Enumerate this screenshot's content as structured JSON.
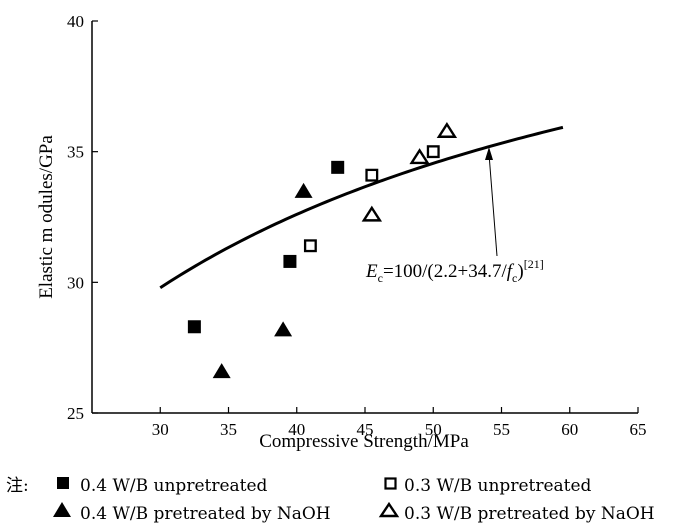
{
  "chart_data": {
    "type": "scatter",
    "xlabel": "Compressive Strength/MPa",
    "ylabel": "Elastic m odules/GPa",
    "xlim": [
      25,
      65
    ],
    "ylim": [
      25,
      40
    ],
    "xticks": [
      30,
      35,
      40,
      45,
      50,
      55,
      60,
      65
    ],
    "yticks": [
      25,
      30,
      35,
      40
    ],
    "grid": false,
    "series": [
      {
        "name": "0.4 W/B unpretreated",
        "marker": "filled-square",
        "x": [
          32.5,
          39.5,
          43.0
        ],
        "y": [
          28.3,
          30.8,
          34.4
        ]
      },
      {
        "name": "0.3 W/B unpretreated",
        "marker": "open-square",
        "x": [
          41.0,
          45.5,
          50.0
        ],
        "y": [
          31.4,
          34.1,
          35.0
        ]
      },
      {
        "name": "0.4 W/B pretreated by NaOH",
        "marker": "filled-triangle",
        "x": [
          34.5,
          39.0,
          40.5
        ],
        "y": [
          26.6,
          28.2,
          33.5
        ]
      },
      {
        "name": "0.3 W/B pretreated by NaOH",
        "marker": "open-triangle",
        "x": [
          45.5,
          49.0,
          51.0
        ],
        "y": [
          32.6,
          34.8,
          35.8
        ]
      }
    ],
    "fit_curve": {
      "formula": {
        "E": "E",
        "c1": "c",
        "mid": "=100/(2.2+34.7/",
        "f": "f",
        "c2": "c",
        "close": ")",
        "ref": "[21]"
      },
      "coeff_a": 100,
      "coeff_b": 2.2,
      "coeff_c": 34.7,
      "x_range": [
        30,
        59.5
      ]
    }
  },
  "legend": {
    "note_label": "注:",
    "items": [
      {
        "text": "0.4 W/B unpretreated",
        "marker": "filled-square"
      },
      {
        "text": "0.3 W/B unpretreated",
        "marker": "open-square"
      },
      {
        "text": "0.4 W/B pretreated by NaOH",
        "marker": "filled-triangle"
      },
      {
        "text": "0.3 W/B pretreated by NaOH",
        "marker": "open-triangle"
      }
    ]
  },
  "colors": {
    "ink": "#000000",
    "background": "#ffffff"
  }
}
